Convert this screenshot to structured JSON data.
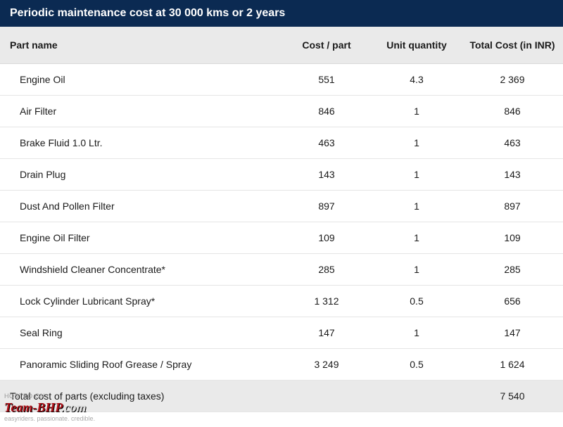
{
  "banner_title": "Periodic maintenance cost at 30 000 kms or 2 years",
  "columns": {
    "name": "Part name",
    "cost": "Cost / part",
    "qty": "Unit quantity",
    "total": "Total Cost (in INR)"
  },
  "rows": [
    {
      "name": "Engine Oil",
      "cost": "551",
      "qty": "4.3",
      "total": "2 369"
    },
    {
      "name": "Air Filter",
      "cost": "846",
      "qty": "1",
      "total": "846"
    },
    {
      "name": "Brake Fluid 1.0 Ltr.",
      "cost": "463",
      "qty": "1",
      "total": "463"
    },
    {
      "name": "Drain Plug",
      "cost": "143",
      "qty": "1",
      "total": "143"
    },
    {
      "name": "Dust And Pollen Filter",
      "cost": "897",
      "qty": "1",
      "total": "897"
    },
    {
      "name": "Engine Oil Filter",
      "cost": "109",
      "qty": "1",
      "total": "109"
    },
    {
      "name": "Windshield Cleaner Concentrate*",
      "cost": "285",
      "qty": "1",
      "total": "285"
    },
    {
      "name": "Lock Cylinder Lubricant Spray*",
      "cost": "1 312",
      "qty": "0.5",
      "total": "656"
    },
    {
      "name": "Seal Ring",
      "cost": "147",
      "qty": "1",
      "total": "147"
    },
    {
      "name": "Panoramic Sliding Roof Grease / Spray",
      "cost": "3 249",
      "qty": "0.5",
      "total": "1 624"
    }
  ],
  "total_row": {
    "label": "Total cost of parts (excluding taxes)",
    "value": "7 540"
  },
  "watermark": {
    "hosted": "HOSTED ON :",
    "brand_a": "Team-BHP",
    "brand_b": ".com",
    "tagline": "easyriders. passionate. credible."
  },
  "style": {
    "banner_bg": "#0b2a52",
    "banner_fg": "#ffffff",
    "header_bg": "#eaeaea",
    "row_border": "#e5e5e5",
    "text_color": "#1a1a1a",
    "brand_color": "#b01018"
  }
}
